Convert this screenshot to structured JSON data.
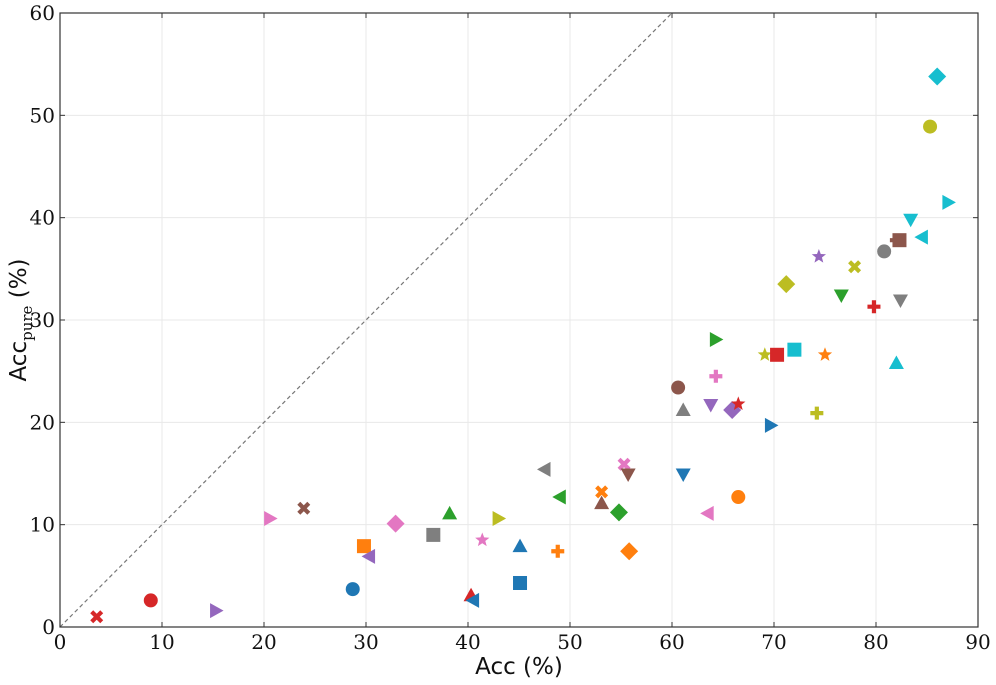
{
  "chart_data": {
    "type": "scatter",
    "title": "",
    "xlabel": "Acc (%)",
    "ylabel_main": "Acc",
    "ylabel_sub": "pure",
    "ylabel_unit": " (%)",
    "xlim": [
      0,
      90
    ],
    "ylim": [
      0,
      60
    ],
    "xticks": [
      0,
      10,
      20,
      30,
      40,
      50,
      60,
      70,
      80,
      90
    ],
    "yticks": [
      0,
      10,
      20,
      30,
      40,
      50,
      60
    ],
    "grid": true,
    "reference_line": {
      "from": [
        0,
        0
      ],
      "to": [
        60,
        60
      ],
      "style": "dashed",
      "color": "#777777"
    },
    "points": [
      {
        "x": 3.6,
        "y": 1.0,
        "marker": "x",
        "color": "#d62728"
      },
      {
        "x": 8.9,
        "y": 2.6,
        "marker": "circle",
        "color": "#d62728"
      },
      {
        "x": 15.3,
        "y": 1.6,
        "marker": "triangle-right",
        "color": "#9467bd"
      },
      {
        "x": 20.6,
        "y": 10.6,
        "marker": "triangle-right",
        "color": "#e377c2"
      },
      {
        "x": 23.9,
        "y": 11.6,
        "marker": "x",
        "color": "#8c564b"
      },
      {
        "x": 28.7,
        "y": 3.7,
        "marker": "circle",
        "color": "#1f77b4"
      },
      {
        "x": 29.8,
        "y": 7.9,
        "marker": "square",
        "color": "#ff7f0e"
      },
      {
        "x": 30.3,
        "y": 6.9,
        "marker": "triangle-left",
        "color": "#9467bd"
      },
      {
        "x": 32.9,
        "y": 10.1,
        "marker": "diamond",
        "color": "#e377c2"
      },
      {
        "x": 36.6,
        "y": 9.0,
        "marker": "square",
        "color": "#7f7f7f"
      },
      {
        "x": 38.2,
        "y": 11.1,
        "marker": "triangle-up",
        "color": "#2ca02c"
      },
      {
        "x": 40.3,
        "y": 3.1,
        "marker": "triangle-up",
        "color": "#d62728"
      },
      {
        "x": 40.5,
        "y": 2.6,
        "marker": "triangle-left",
        "color": "#1f77b4"
      },
      {
        "x": 41.4,
        "y": 8.5,
        "marker": "star",
        "color": "#e377c2"
      },
      {
        "x": 43.0,
        "y": 10.6,
        "marker": "triangle-right",
        "color": "#bcbd22"
      },
      {
        "x": 45.1,
        "y": 7.9,
        "marker": "triangle-up",
        "color": "#1f77b4"
      },
      {
        "x": 45.1,
        "y": 4.3,
        "marker": "square",
        "color": "#1f77b4"
      },
      {
        "x": 47.5,
        "y": 15.4,
        "marker": "triangle-left",
        "color": "#7f7f7f"
      },
      {
        "x": 49.0,
        "y": 12.7,
        "marker": "triangle-left",
        "color": "#2ca02c"
      },
      {
        "x": 48.8,
        "y": 7.4,
        "marker": "plus",
        "color": "#ff7f0e"
      },
      {
        "x": 53.1,
        "y": 13.2,
        "marker": "x",
        "color": "#ff7f0e"
      },
      {
        "x": 53.1,
        "y": 12.1,
        "marker": "triangle-up",
        "color": "#8c564b"
      },
      {
        "x": 54.8,
        "y": 11.2,
        "marker": "diamond",
        "color": "#2ca02c"
      },
      {
        "x": 55.3,
        "y": 15.9,
        "marker": "x",
        "color": "#e377c2"
      },
      {
        "x": 55.7,
        "y": 14.9,
        "marker": "triangle-down",
        "color": "#8c564b"
      },
      {
        "x": 55.8,
        "y": 7.4,
        "marker": "diamond",
        "color": "#ff7f0e"
      },
      {
        "x": 60.6,
        "y": 23.4,
        "marker": "circle",
        "color": "#8c564b"
      },
      {
        "x": 61.1,
        "y": 21.2,
        "marker": "triangle-up",
        "color": "#7f7f7f"
      },
      {
        "x": 61.1,
        "y": 14.9,
        "marker": "triangle-down",
        "color": "#1f77b4"
      },
      {
        "x": 63.5,
        "y": 11.1,
        "marker": "triangle-left",
        "color": "#e377c2"
      },
      {
        "x": 64.3,
        "y": 28.1,
        "marker": "triangle-right",
        "color": "#2ca02c"
      },
      {
        "x": 64.3,
        "y": 24.5,
        "marker": "plus",
        "color": "#e377c2"
      },
      {
        "x": 63.8,
        "y": 21.7,
        "marker": "triangle-down",
        "color": "#9467bd"
      },
      {
        "x": 65.9,
        "y": 21.2,
        "marker": "diamond",
        "color": "#9467bd"
      },
      {
        "x": 66.5,
        "y": 21.8,
        "marker": "star",
        "color": "#d62728"
      },
      {
        "x": 66.5,
        "y": 12.7,
        "marker": "circle",
        "color": "#ff7f0e"
      },
      {
        "x": 69.1,
        "y": 26.6,
        "marker": "star",
        "color": "#bcbd22"
      },
      {
        "x": 70.3,
        "y": 26.6,
        "marker": "square",
        "color": "#d62728"
      },
      {
        "x": 69.7,
        "y": 19.7,
        "marker": "triangle-right",
        "color": "#1f77b4"
      },
      {
        "x": 71.2,
        "y": 33.5,
        "marker": "diamond",
        "color": "#bcbd22"
      },
      {
        "x": 72.0,
        "y": 27.1,
        "marker": "square",
        "color": "#17becf"
      },
      {
        "x": 74.4,
        "y": 36.2,
        "marker": "star",
        "color": "#9467bd"
      },
      {
        "x": 74.2,
        "y": 20.9,
        "marker": "plus",
        "color": "#bcbd22"
      },
      {
        "x": 75.0,
        "y": 26.6,
        "marker": "star",
        "color": "#ff7f0e"
      },
      {
        "x": 76.6,
        "y": 32.4,
        "marker": "triangle-down",
        "color": "#2ca02c"
      },
      {
        "x": 77.9,
        "y": 35.2,
        "marker": "x",
        "color": "#bcbd22"
      },
      {
        "x": 79.8,
        "y": 31.3,
        "marker": "plus",
        "color": "#d62728"
      },
      {
        "x": 80.8,
        "y": 36.7,
        "marker": "circle",
        "color": "#7f7f7f"
      },
      {
        "x": 82.0,
        "y": 37.8,
        "marker": "plus",
        "color": "#8c564b"
      },
      {
        "x": 82.3,
        "y": 37.8,
        "marker": "square",
        "color": "#8c564b"
      },
      {
        "x": 82.4,
        "y": 31.9,
        "marker": "triangle-down",
        "color": "#7f7f7f"
      },
      {
        "x": 82.0,
        "y": 25.8,
        "marker": "triangle-up",
        "color": "#17becf"
      },
      {
        "x": 83.4,
        "y": 39.8,
        "marker": "triangle-down",
        "color": "#17becf"
      },
      {
        "x": 84.5,
        "y": 38.1,
        "marker": "triangle-left",
        "color": "#17becf"
      },
      {
        "x": 85.3,
        "y": 48.9,
        "marker": "circle",
        "color": "#bcbd22"
      },
      {
        "x": 86.0,
        "y": 53.8,
        "marker": "diamond",
        "color": "#17becf"
      },
      {
        "x": 87.1,
        "y": 41.5,
        "marker": "triangle-right",
        "color": "#17becf"
      }
    ]
  }
}
